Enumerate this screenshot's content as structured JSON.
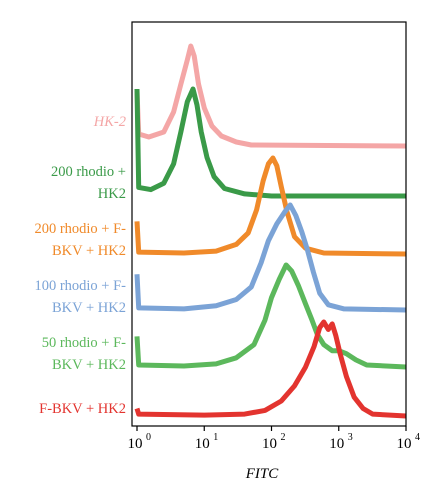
{
  "chart_data": {
    "type": "line",
    "title": "",
    "xlabel": "FITC",
    "ylabel": "",
    "x_scale": "log",
    "xlim": [
      1,
      10000
    ],
    "x_ticks": [
      {
        "value": 1,
        "base": "10",
        "exp": "0"
      },
      {
        "value": 10,
        "base": "10",
        "exp": "1"
      },
      {
        "value": 100,
        "base": "10",
        "exp": "2"
      },
      {
        "value": 1000,
        "base": "10",
        "exp": "3"
      },
      {
        "value": 10000,
        "base": "10",
        "exp": "4"
      }
    ],
    "ylim": [
      0,
      1
    ],
    "y_tick_labels": [],
    "grid": false,
    "legend": "none",
    "series": [
      {
        "name": "HK-2",
        "label_lines": [
          "HK-2"
        ],
        "label_italic": true,
        "color": "#f4a6a6",
        "points": [
          [
            1.0,
            0.55
          ],
          [
            1.06,
            0.12
          ],
          [
            1.5,
            0.09
          ],
          [
            2.5,
            0.14
          ],
          [
            3.5,
            0.34
          ],
          [
            4.5,
            0.62
          ],
          [
            5.6,
            0.86
          ],
          [
            6.3,
            1.0
          ],
          [
            7.1,
            0.9
          ],
          [
            8.2,
            0.62
          ],
          [
            10,
            0.38
          ],
          [
            13,
            0.2
          ],
          [
            18,
            0.1
          ],
          [
            30,
            0.04
          ],
          [
            50,
            0.01
          ],
          [
            10000,
            0.0
          ]
        ]
      },
      {
        "name": "200 rhodio + HK2",
        "label_lines": [
          "200 rhodio +",
          "HK2"
        ],
        "label_italic": false,
        "color": "#3a9a48",
        "points": [
          [
            1.0,
            1.0
          ],
          [
            1.06,
            0.08
          ],
          [
            1.6,
            0.06
          ],
          [
            2.5,
            0.12
          ],
          [
            3.5,
            0.3
          ],
          [
            4.5,
            0.6
          ],
          [
            5.6,
            0.88
          ],
          [
            6.8,
            1.0
          ],
          [
            7.8,
            0.85
          ],
          [
            9,
            0.6
          ],
          [
            11,
            0.36
          ],
          [
            14,
            0.18
          ],
          [
            20,
            0.07
          ],
          [
            40,
            0.02
          ],
          [
            100,
            0.0
          ],
          [
            10000,
            0.0
          ]
        ]
      },
      {
        "name": "200 rhodio + F-BKV + HK2",
        "label_lines": [
          "200 rhodio + F-",
          "BKV + HK2"
        ],
        "label_italic": false,
        "color": "#f08a2a",
        "points": [
          [
            1.0,
            0.34
          ],
          [
            1.06,
            0.02
          ],
          [
            5,
            0.01
          ],
          [
            15,
            0.03
          ],
          [
            30,
            0.1
          ],
          [
            45,
            0.22
          ],
          [
            60,
            0.46
          ],
          [
            75,
            0.76
          ],
          [
            90,
            0.94
          ],
          [
            105,
            1.0
          ],
          [
            120,
            0.92
          ],
          [
            140,
            0.7
          ],
          [
            170,
            0.44
          ],
          [
            220,
            0.18
          ],
          [
            320,
            0.06
          ],
          [
            600,
            0.01
          ],
          [
            10000,
            0.0
          ]
        ]
      },
      {
        "name": "100 rhodio + F-BKV + HK2",
        "label_lines": [
          "100 rhodio + F-",
          "BKV + HK2"
        ],
        "label_italic": false,
        "color": "#7ba3d6",
        "points": [
          [
            1.0,
            0.34
          ],
          [
            1.06,
            0.02
          ],
          [
            5,
            0.01
          ],
          [
            15,
            0.04
          ],
          [
            30,
            0.1
          ],
          [
            50,
            0.22
          ],
          [
            70,
            0.45
          ],
          [
            90,
            0.66
          ],
          [
            120,
            0.82
          ],
          [
            160,
            0.94
          ],
          [
            190,
            1.0
          ],
          [
            230,
            0.9
          ],
          [
            280,
            0.75
          ],
          [
            340,
            0.58
          ],
          [
            420,
            0.36
          ],
          [
            520,
            0.16
          ],
          [
            700,
            0.05
          ],
          [
            1200,
            0.01
          ],
          [
            10000,
            0.0
          ]
        ]
      },
      {
        "name": "50 rhodio + F-BKV + HK2",
        "label_lines": [
          "50 rhodio + F-",
          "BKV + HK2"
        ],
        "label_italic": false,
        "color": "#5cb85c",
        "points": [
          [
            1.0,
            0.3
          ],
          [
            1.06,
            0.02
          ],
          [
            5,
            0.01
          ],
          [
            15,
            0.03
          ],
          [
            30,
            0.09
          ],
          [
            55,
            0.22
          ],
          [
            80,
            0.46
          ],
          [
            100,
            0.68
          ],
          [
            130,
            0.86
          ],
          [
            165,
            1.0
          ],
          [
            200,
            0.94
          ],
          [
            250,
            0.8
          ],
          [
            320,
            0.62
          ],
          [
            400,
            0.46
          ],
          [
            480,
            0.32
          ],
          [
            600,
            0.22
          ],
          [
            800,
            0.16
          ],
          [
            1000,
            0.16
          ],
          [
            1300,
            0.13
          ],
          [
            1800,
            0.07
          ],
          [
            2600,
            0.02
          ],
          [
            10000,
            0.0
          ]
        ]
      },
      {
        "name": "F-BKV + HK2",
        "label_lines": [
          "F-BKV + HK2"
        ],
        "label_italic": false,
        "color": "#e3342f",
        "points": [
          [
            1.0,
            0.08
          ],
          [
            1.06,
            0.02
          ],
          [
            10,
            0.01
          ],
          [
            40,
            0.02
          ],
          [
            80,
            0.06
          ],
          [
            140,
            0.16
          ],
          [
            220,
            0.32
          ],
          [
            320,
            0.52
          ],
          [
            430,
            0.74
          ],
          [
            520,
            0.94
          ],
          [
            600,
            1.0
          ],
          [
            700,
            0.92
          ],
          [
            800,
            0.98
          ],
          [
            900,
            0.86
          ],
          [
            1050,
            0.66
          ],
          [
            1300,
            0.42
          ],
          [
            1700,
            0.2
          ],
          [
            2300,
            0.08
          ],
          [
            3200,
            0.02
          ],
          [
            10000,
            0.0
          ]
        ]
      }
    ]
  }
}
